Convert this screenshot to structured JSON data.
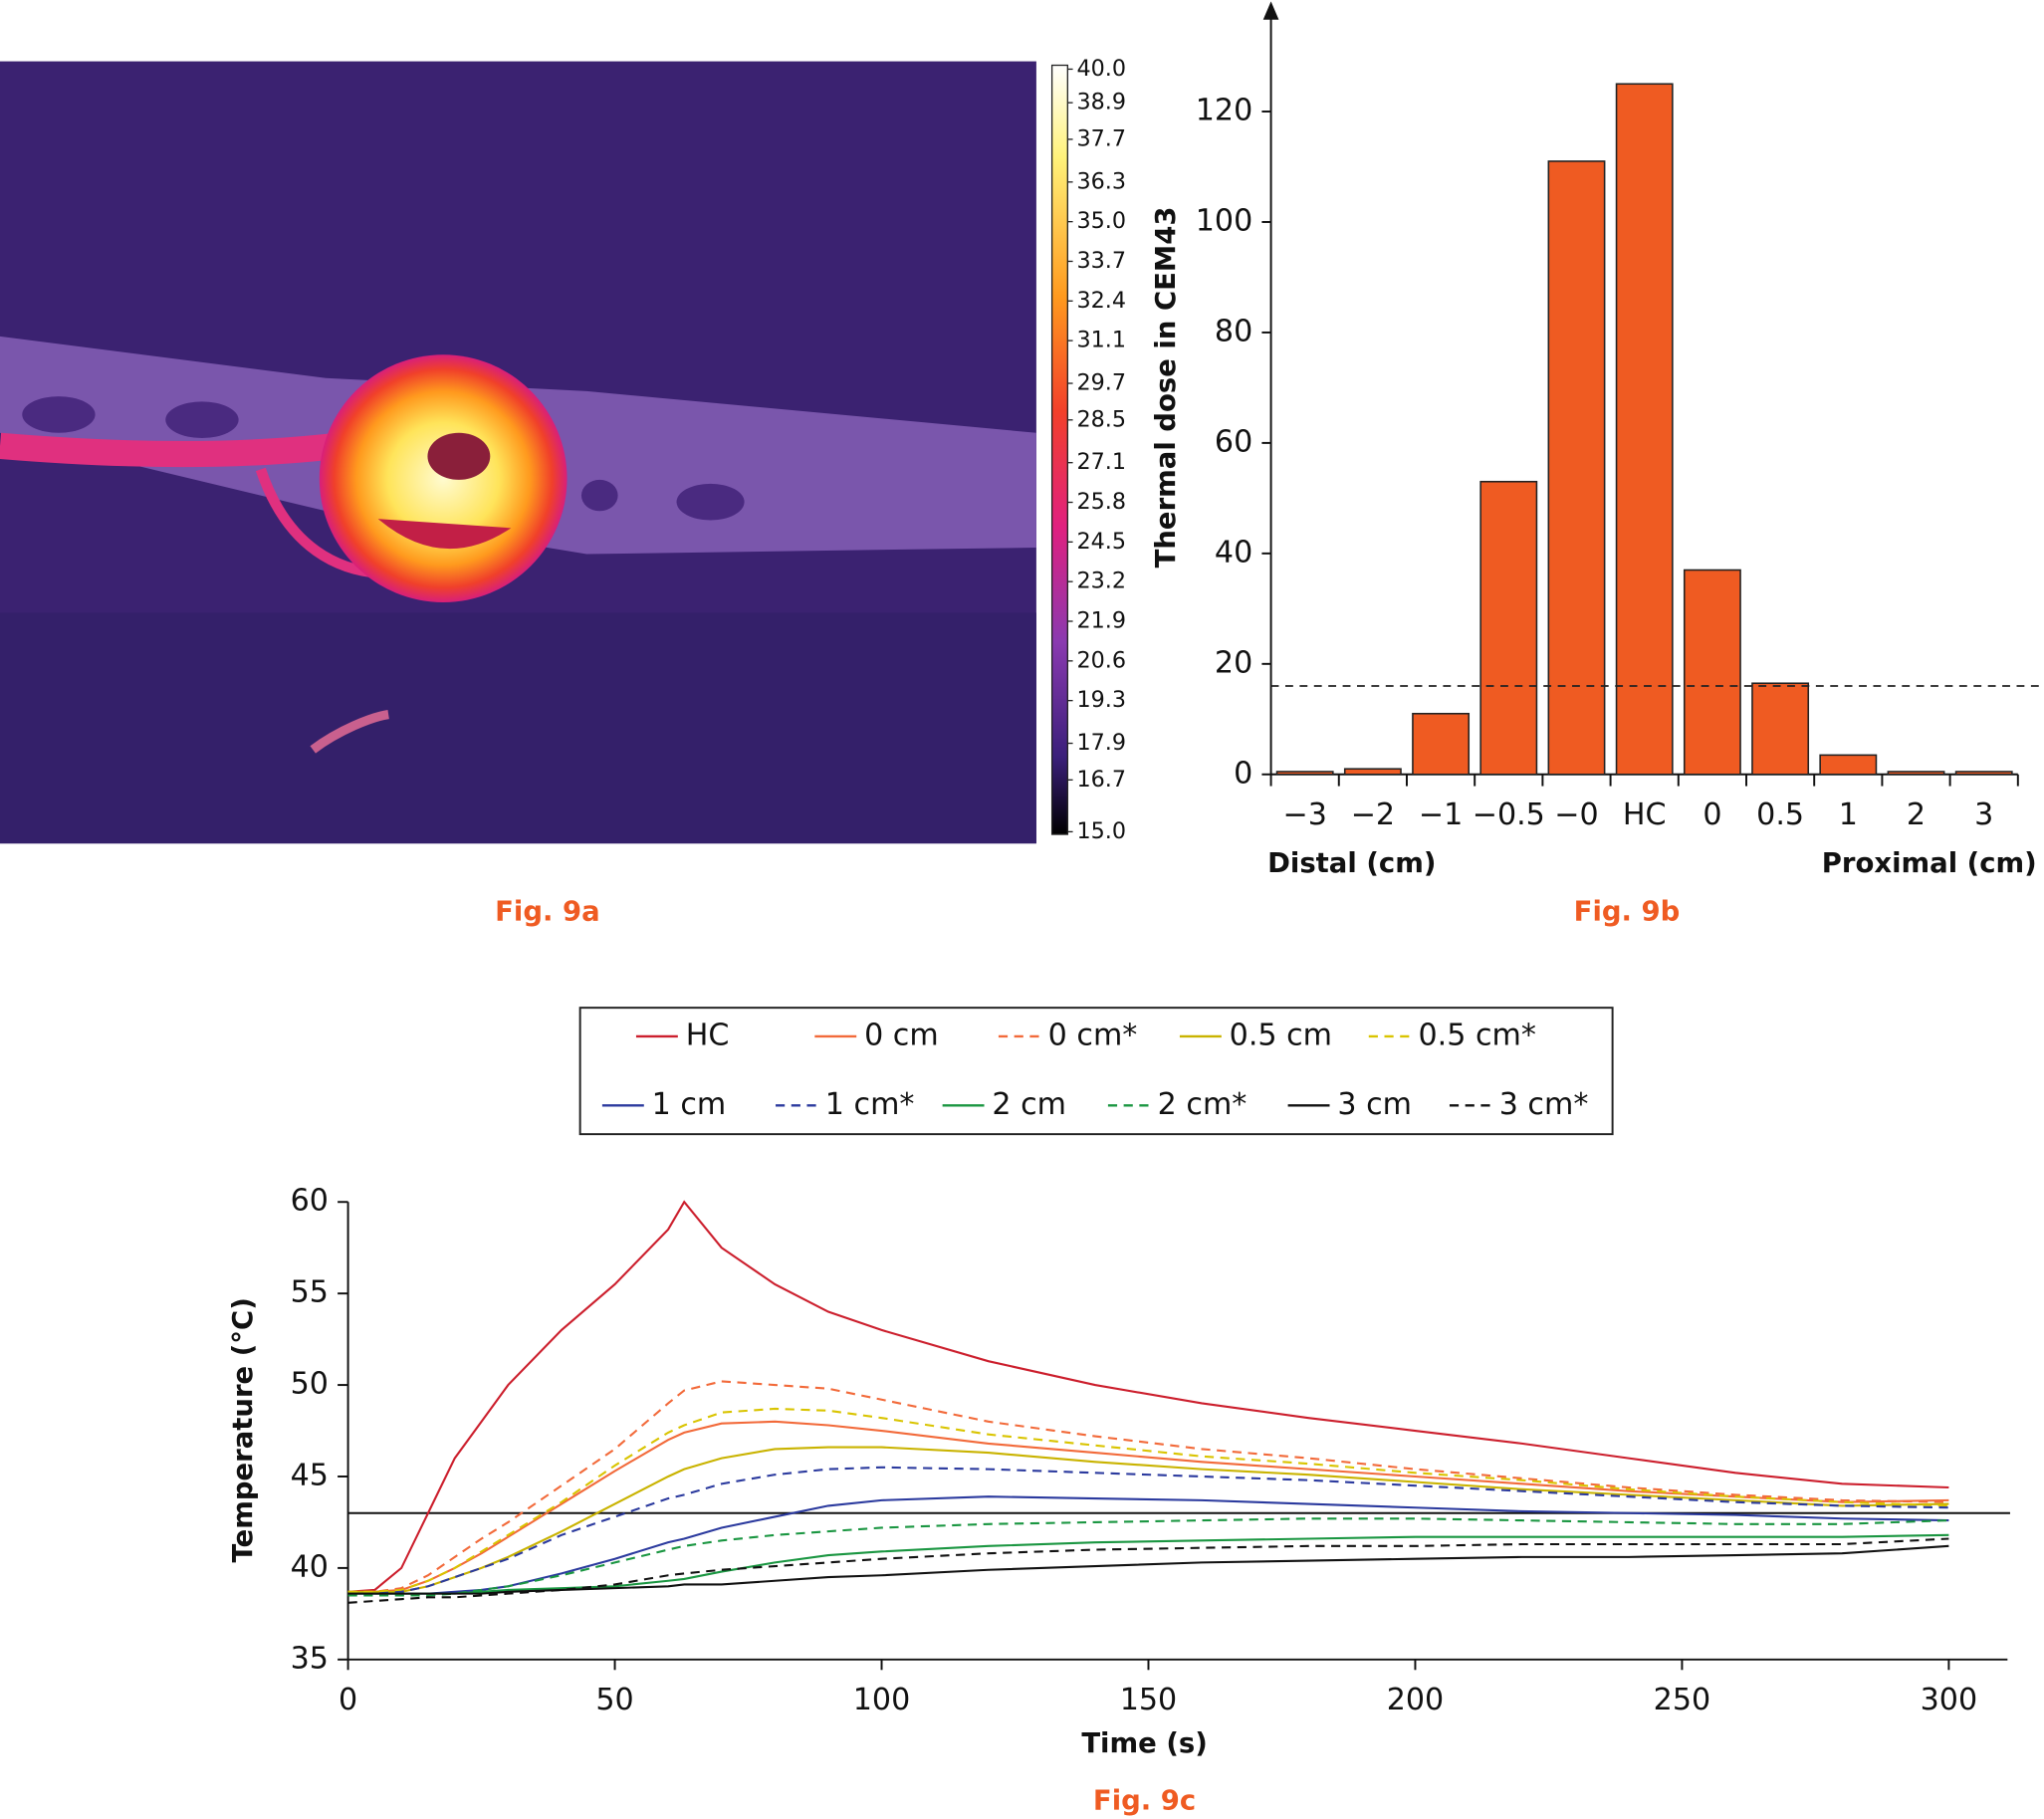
{
  "chart_data": [
    {
      "type": "image",
      "caption": "Fig. 9a",
      "colorbar_lim": [
        15,
        40
      ],
      "colorbar_ticks": [
        {
          "value": 40,
          "label": "40.0"
        },
        38.9,
        37.7,
        36.3,
        {
          "value": 35,
          "label": "35.0"
        },
        33.7,
        32.4,
        31.1,
        29.7,
        28.5,
        27.1,
        25.8,
        24.5,
        23.2,
        21.9,
        20.6,
        19.3,
        17.9,
        16.7,
        {
          "value": 15,
          "label": "15.0"
        }
      ]
    },
    {
      "type": "bar",
      "caption": "Fig. 9b",
      "ylabel": "Thermal dose in CEM43",
      "xlabel_left": "Distal (cm)",
      "xlabel_right": "Proximal (cm)",
      "categories": [
        "−3",
        "−2",
        "−1",
        "−0.5",
        "−0",
        "HC",
        "0",
        "0.5",
        "1",
        "2",
        "3"
      ],
      "values": [
        0.5,
        1,
        11,
        53,
        111,
        125,
        37,
        16.5,
        3.5,
        0.5,
        0.5
      ],
      "color": "#ef5b22",
      "ylim": [
        0,
        139
      ],
      "yticks": [
        0,
        20,
        40,
        60,
        80,
        100,
        120
      ],
      "threshold": 16
    },
    {
      "type": "line",
      "caption": "Fig. 9c",
      "xlabel": "Time (s)",
      "ylabel": "Temperature (°C)",
      "x": [
        0,
        5,
        10,
        15,
        20,
        25,
        30,
        40,
        50,
        60,
        63,
        70,
        80,
        90,
        100,
        120,
        140,
        160,
        180,
        200,
        220,
        240,
        260,
        280,
        300
      ],
      "series": [
        {
          "name": "HC",
          "color": "#cc1f2d",
          "dashed": false,
          "values": [
            38.7,
            38.8,
            40,
            43,
            46,
            48,
            50,
            53,
            55.5,
            58.5,
            60,
            57.5,
            55.5,
            54,
            53,
            51.3,
            50,
            49,
            48.2,
            47.5,
            46.8,
            46,
            45.2,
            44.6,
            44.4
          ]
        },
        {
          "name": "0 cm",
          "color": "#f26a3a",
          "dashed": false,
          "values": [
            38.7,
            38.7,
            38.8,
            39.3,
            40,
            40.8,
            41.7,
            43.5,
            45.3,
            47,
            47.4,
            47.9,
            48,
            47.8,
            47.5,
            46.8,
            46.3,
            45.8,
            45.4,
            45,
            44.6,
            44.2,
            43.9,
            43.6,
            43.7
          ]
        },
        {
          "name": "0 cm*",
          "color": "#f26a3a",
          "dashed": true,
          "values": [
            38.7,
            38.7,
            38.9,
            39.6,
            40.6,
            41.6,
            42.5,
            44.5,
            46.5,
            49,
            49.7,
            50.2,
            50,
            49.8,
            49.2,
            48,
            47.2,
            46.5,
            46,
            45.4,
            44.9,
            44.4,
            44,
            43.7,
            43.6
          ]
        },
        {
          "name": "0.5 cm",
          "color": "#c9b300",
          "dashed": false,
          "values": [
            38.7,
            38.7,
            38.7,
            39,
            39.5,
            40,
            40.6,
            42,
            43.5,
            45,
            45.4,
            46,
            46.5,
            46.6,
            46.6,
            46.3,
            45.8,
            45.4,
            45.1,
            44.7,
            44.3,
            44,
            43.7,
            43.4,
            43.5
          ]
        },
        {
          "name": "0.5 cm*",
          "color": "#d9c400",
          "dashed": true,
          "values": [
            38.7,
            38.7,
            38.8,
            39.3,
            40,
            40.9,
            41.8,
            43.6,
            45.6,
            47.4,
            47.8,
            48.5,
            48.7,
            48.6,
            48.2,
            47.3,
            46.7,
            46.1,
            45.7,
            45.2,
            44.8,
            44.3,
            43.9,
            43.6,
            43.4
          ]
        },
        {
          "name": "1 cm",
          "color": "#2b3a9e",
          "dashed": false,
          "values": [
            38.6,
            38.6,
            38.6,
            38.6,
            38.7,
            38.8,
            39,
            39.7,
            40.5,
            41.4,
            41.6,
            42.2,
            42.8,
            43.4,
            43.7,
            43.9,
            43.8,
            43.7,
            43.5,
            43.3,
            43.1,
            43,
            42.9,
            42.7,
            42.6
          ]
        },
        {
          "name": "1 cm*",
          "color": "#2b3a9e",
          "dashed": true,
          "values": [
            38.6,
            38.6,
            38.7,
            39,
            39.5,
            40,
            40.5,
            41.8,
            42.8,
            43.8,
            44,
            44.6,
            45.1,
            45.4,
            45.5,
            45.4,
            45.2,
            45,
            44.8,
            44.5,
            44.2,
            43.9,
            43.6,
            43.4,
            43.3
          ]
        },
        {
          "name": "2 cm",
          "color": "#1a9641",
          "dashed": false,
          "values": [
            38.6,
            38.6,
            38.6,
            38.6,
            38.6,
            38.7,
            38.8,
            38.9,
            39,
            39.3,
            39.4,
            39.8,
            40.3,
            40.7,
            40.9,
            41.2,
            41.4,
            41.5,
            41.6,
            41.7,
            41.7,
            41.7,
            41.7,
            41.7,
            41.8
          ]
        },
        {
          "name": "2 cm*",
          "color": "#1a9641",
          "dashed": true,
          "values": [
            38.5,
            38.5,
            38.5,
            38.5,
            38.6,
            38.8,
            39,
            39.6,
            40.3,
            41,
            41.2,
            41.5,
            41.8,
            42,
            42.2,
            42.4,
            42.5,
            42.6,
            42.7,
            42.7,
            42.6,
            42.5,
            42.4,
            42.4,
            42.6
          ]
        },
        {
          "name": "3 cm",
          "color": "#111111",
          "dashed": false,
          "values": [
            38.6,
            38.6,
            38.6,
            38.6,
            38.6,
            38.6,
            38.7,
            38.8,
            38.9,
            39,
            39.1,
            39.1,
            39.3,
            39.5,
            39.6,
            39.9,
            40.1,
            40.3,
            40.4,
            40.5,
            40.6,
            40.6,
            40.7,
            40.8,
            41.2
          ]
        },
        {
          "name": "3 cm*",
          "color": "#111111",
          "dashed": true,
          "values": [
            38.1,
            38.2,
            38.3,
            38.4,
            38.4,
            38.5,
            38.6,
            38.8,
            39.1,
            39.6,
            39.7,
            39.9,
            40.1,
            40.3,
            40.5,
            40.8,
            41,
            41.1,
            41.2,
            41.2,
            41.3,
            41.3,
            41.3,
            41.3,
            41.6
          ]
        }
      ],
      "xlim": [
        0,
        311
      ],
      "ylim": [
        35,
        60
      ],
      "xticks": [
        0,
        50,
        100,
        150,
        200,
        250,
        300
      ],
      "yticks": [
        35,
        40,
        45,
        50,
        55,
        60
      ],
      "threshold": 43
    }
  ]
}
